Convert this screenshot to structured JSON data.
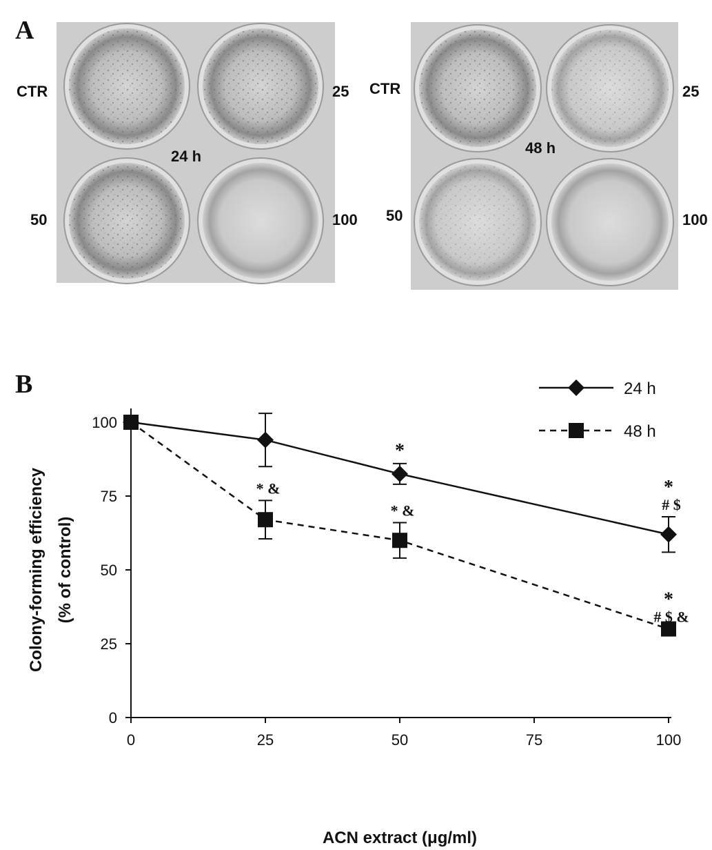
{
  "panel_a": {
    "letter": "A",
    "plates": [
      {
        "time_label": "24 h",
        "wells": [
          {
            "label": "CTR"
          },
          {
            "label": "25"
          },
          {
            "label": "50"
          },
          {
            "label": "100"
          }
        ]
      },
      {
        "time_label": "48 h",
        "wells": [
          {
            "label": "CTR"
          },
          {
            "label": "25"
          },
          {
            "label": "50"
          },
          {
            "label": "100"
          }
        ]
      }
    ]
  },
  "panel_b": {
    "letter": "B"
  },
  "chart_data": {
    "type": "line",
    "xlabel": "ACN extract (μg/ml)",
    "ylabel_line1": "Colony-forming efficiency",
    "ylabel_line2": "(% of control)",
    "x": [
      0,
      25,
      50,
      100
    ],
    "xticks": [
      0,
      25,
      50,
      75,
      100
    ],
    "yticks": [
      0,
      25,
      50,
      75,
      100
    ],
    "xlim": [
      0,
      100
    ],
    "ylim": [
      0,
      100
    ],
    "legend_position": "top-right",
    "series": [
      {
        "name": "24 h",
        "marker": "diamond",
        "line": "solid",
        "values": [
          100,
          94,
          82.5,
          62
        ],
        "errors": [
          0,
          9,
          3.5,
          6
        ],
        "annotations": [
          [],
          [],
          [
            "*"
          ],
          [
            "*",
            "# $"
          ]
        ]
      },
      {
        "name": "48 h",
        "marker": "square",
        "line": "dashed",
        "values": [
          100,
          67,
          60,
          30
        ],
        "errors": [
          0,
          6.5,
          6,
          0
        ],
        "annotations": [
          [],
          [
            "* &"
          ],
          [
            "* &"
          ],
          [
            "*",
            "# $ &"
          ]
        ]
      }
    ]
  }
}
